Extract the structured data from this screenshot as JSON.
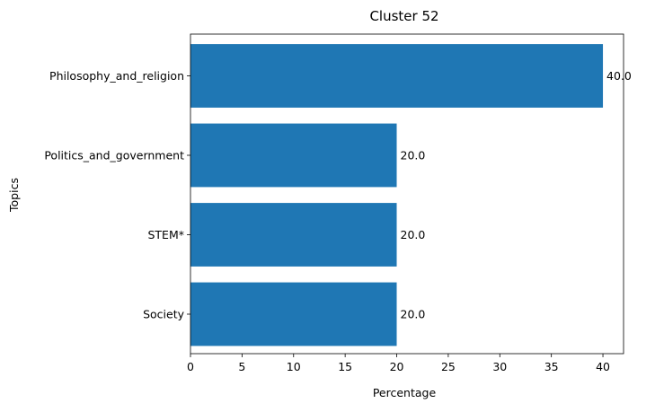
{
  "chart_data": {
    "type": "bar",
    "orientation": "horizontal",
    "title": "Cluster 52",
    "xlabel": "Percentage",
    "ylabel": "Topics",
    "categories": [
      "Philosophy_and_religion",
      "Politics_and_government",
      "STEM*",
      "Society"
    ],
    "values": [
      40.0,
      20.0,
      20.0,
      20.0
    ],
    "value_labels": [
      "40.0",
      "20.0",
      "20.0",
      "20.0"
    ],
    "xlim": [
      0,
      42
    ],
    "xticks": [
      0,
      5,
      10,
      15,
      20,
      25,
      30,
      35,
      40
    ],
    "xtick_labels": [
      "0",
      "5",
      "10",
      "15",
      "20",
      "25",
      "30",
      "35",
      "40"
    ],
    "grid": false,
    "legend": "none",
    "bar_color": "#1f77b4"
  }
}
